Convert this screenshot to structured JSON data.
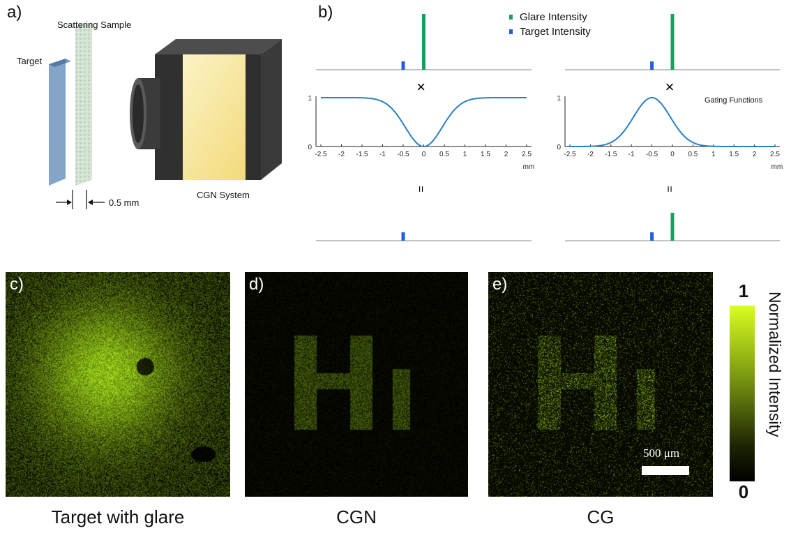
{
  "figure": {
    "panels": {
      "a": "a)",
      "b": "b)",
      "c": "c)",
      "d": "d)",
      "e": "e)"
    },
    "schematic": {
      "scattering_sample": "Scattering Sample",
      "target": "Target",
      "system": "CGN System",
      "gap": "0.5 mm"
    },
    "legend": {
      "glare": "Glare Intensity",
      "target": "Target Intensity",
      "glare_color": "#1a9e5c",
      "target_color": "#1f5fe0"
    },
    "symbols": {
      "multiply": "×",
      "equals": "="
    },
    "gating_label": "Gating Functions",
    "x_unit": "mm",
    "y_ticks": [
      "1",
      "0"
    ],
    "x_ticks": [
      "-2.5",
      "-2",
      "-1.5",
      "-1",
      "-0.5",
      "0",
      "0.5",
      "1",
      "1.5",
      "2",
      "2.5"
    ],
    "captions": {
      "c": "Target with glare",
      "d": "CGN",
      "e": "CG"
    },
    "scale_bar": "500 μm",
    "colorbar": {
      "label": "Normalized Intensity",
      "max": "1",
      "min": "0"
    }
  },
  "chart_data": [
    {
      "type": "bar",
      "panel": "b-top-left",
      "series": [
        {
          "name": "Glare Intensity",
          "x": [
            0
          ],
          "values": [
            1.0
          ]
        },
        {
          "name": "Target Intensity",
          "x": [
            -0.5
          ],
          "values": [
            0.15
          ]
        }
      ]
    },
    {
      "type": "line",
      "panel": "b-middle-left",
      "function": "1 - exp(-x^2 / 0.4)",
      "xlim": [
        -2.5,
        2.5
      ],
      "ylim": [
        0,
        1
      ],
      "xlabel": "mm"
    },
    {
      "type": "bar",
      "panel": "b-bottom-left",
      "series": [
        {
          "name": "Glare Intensity",
          "x": [
            0
          ],
          "values": [
            0
          ]
        },
        {
          "name": "Target Intensity",
          "x": [
            -0.5
          ],
          "values": [
            0.15
          ]
        }
      ]
    },
    {
      "type": "bar",
      "panel": "b-top-right",
      "series": [
        {
          "name": "Glare Intensity",
          "x": [
            0
          ],
          "values": [
            1.0
          ]
        },
        {
          "name": "Target Intensity",
          "x": [
            -0.5
          ],
          "values": [
            0.15
          ]
        }
      ]
    },
    {
      "type": "line",
      "panel": "b-middle-right",
      "function": "exp(-(x+0.5)^2 / 0.4)",
      "xlim": [
        -2.5,
        2.5
      ],
      "ylim": [
        0,
        1
      ],
      "xlabel": "mm"
    },
    {
      "type": "bar",
      "panel": "b-bottom-right",
      "series": [
        {
          "name": "Glare Intensity",
          "x": [
            0
          ],
          "values": [
            0.5
          ]
        },
        {
          "name": "Target Intensity",
          "x": [
            -0.5
          ],
          "values": [
            0.15
          ]
        }
      ]
    }
  ]
}
